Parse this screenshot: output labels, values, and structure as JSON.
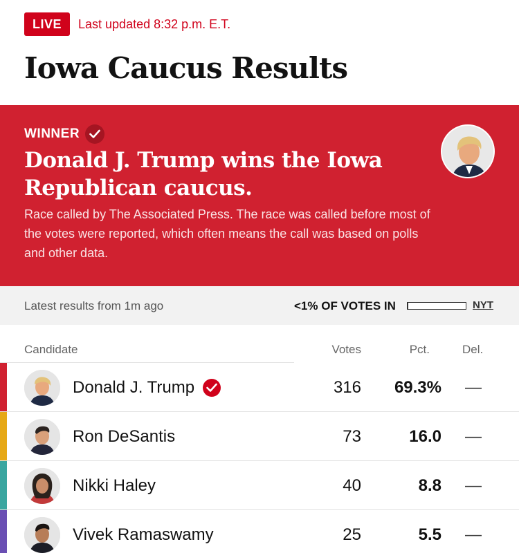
{
  "live": {
    "badge": "LIVE",
    "updated": "Last updated 8:32 p.m. E.T."
  },
  "title": "Iowa Caucus Results",
  "winner": {
    "label": "WINNER",
    "headline": "Donald J. Trump wins the Iowa Republican caucus.",
    "description": "Race called by The Associated Press. The race was called before most of the votes were reported, which often means the call was based on polls and other data."
  },
  "status": {
    "latest": "Latest results from 1m ago",
    "votes_in": "<1% OF VOTES IN",
    "progress_fraction": 0.005,
    "source_link": "NYT"
  },
  "table": {
    "headers": {
      "candidate": "Candidate",
      "votes": "Votes",
      "pct": "Pct.",
      "del": "Del."
    },
    "rows": [
      {
        "name": "Donald J. Trump",
        "votes": "316",
        "pct": "69.3%",
        "del": "—",
        "color": "#d02130",
        "winner": true
      },
      {
        "name": "Ron DeSantis",
        "votes": "73",
        "pct": "16.0",
        "del": "—",
        "color": "#e6a817",
        "winner": false
      },
      {
        "name": "Nikki Haley",
        "votes": "40",
        "pct": "8.8",
        "del": "—",
        "color": "#3aa6a0",
        "winner": false
      },
      {
        "name": "Vivek Ramaswamy",
        "votes": "25",
        "pct": "5.5",
        "del": "—",
        "color": "#6a4fb3",
        "winner": false
      }
    ]
  }
}
